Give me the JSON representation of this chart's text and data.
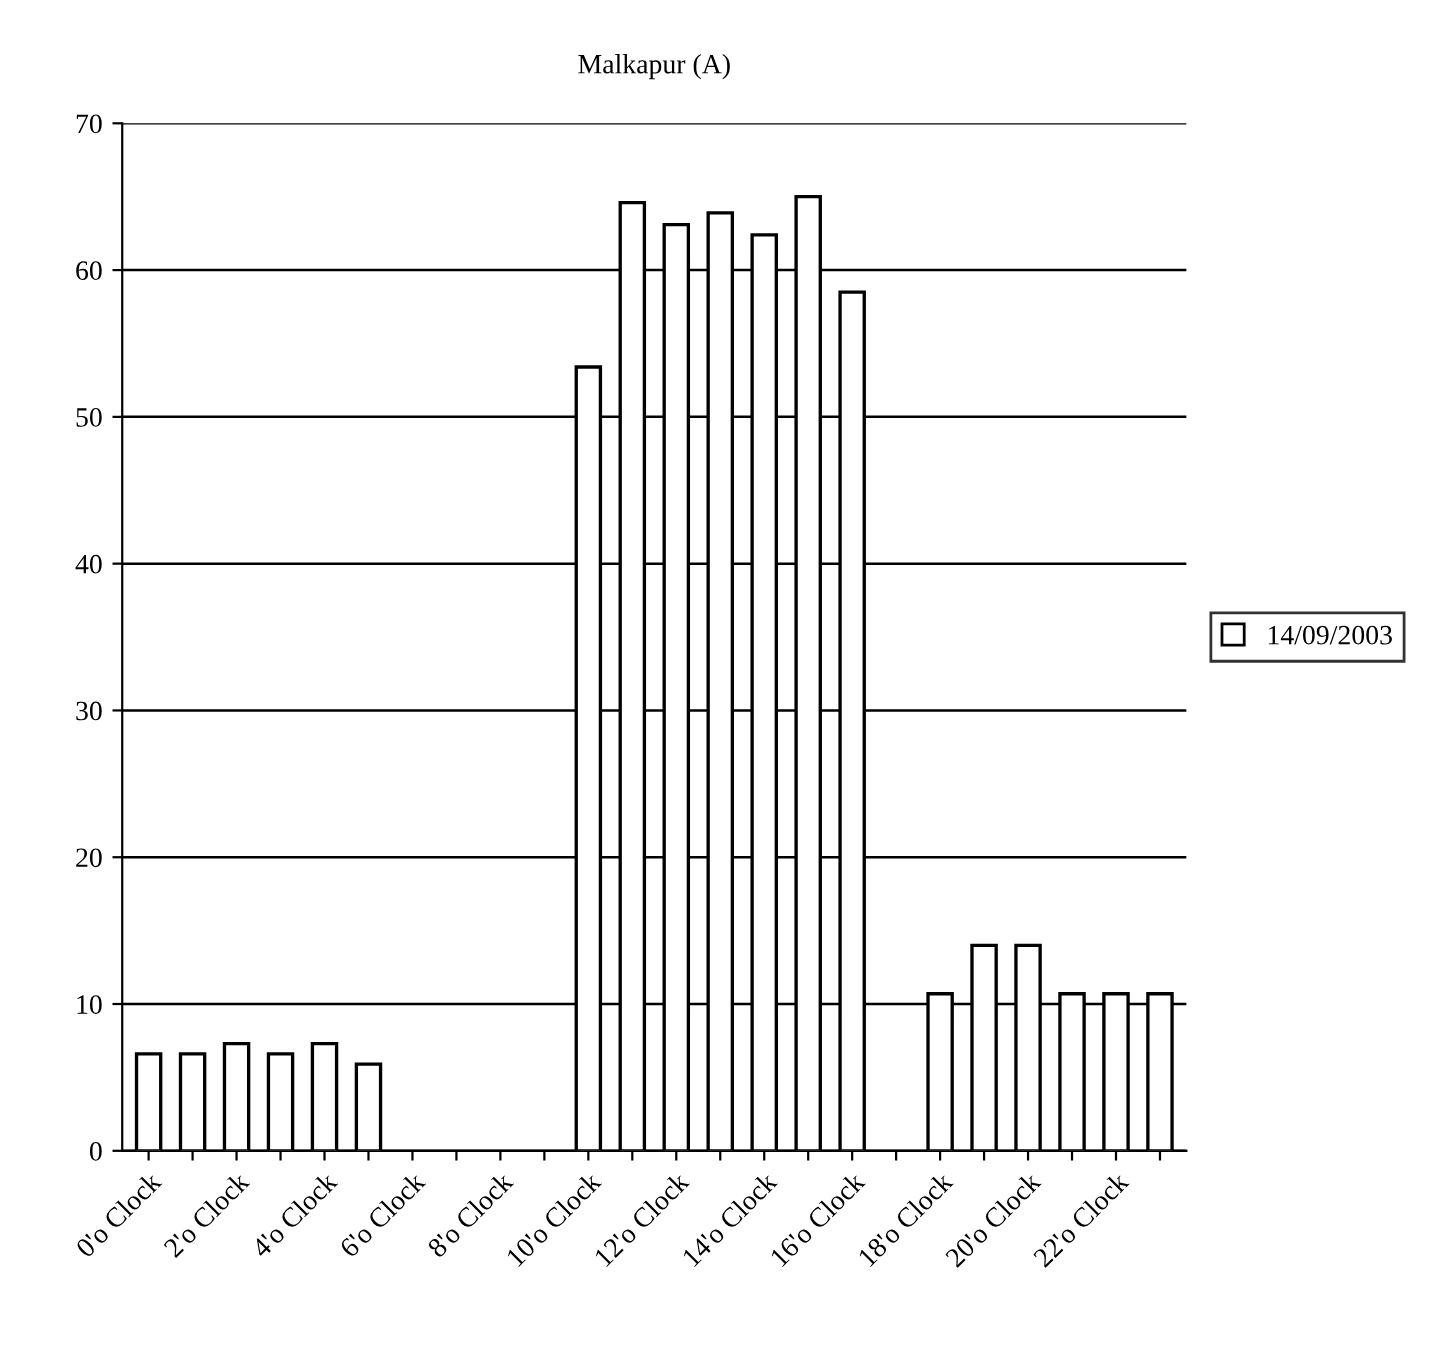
{
  "chart_data": {
    "type": "bar",
    "title": "Malkapur (A)",
    "categories": [
      "0'o Clock",
      null,
      "2'o Clock",
      null,
      "4'o Clock",
      null,
      "6'o Clock",
      null,
      "8'o Clock",
      null,
      "10'o Clock",
      null,
      "12'o Clock",
      null,
      "14'o Clock",
      null,
      "16'o Clock",
      null,
      "18'o Clock",
      null,
      "20'o Clock",
      null,
      "22'o Clock",
      null
    ],
    "series": [
      {
        "name": "14/09/2003",
        "color": "#ffffff",
        "values": [
          6.6,
          6.6,
          7.3,
          6.6,
          7.3,
          5.9,
          0,
          0,
          0,
          0,
          53.4,
          64.6,
          63.1,
          63.9,
          62.4,
          65.0,
          58.5,
          0,
          10.7,
          14.0,
          14.0,
          10.7,
          10.7,
          10.7
        ]
      }
    ],
    "ylim": [
      0,
      70
    ],
    "yticks": [
      0,
      10,
      20,
      30,
      40,
      50,
      60,
      70
    ],
    "grid": "y",
    "legend": "right"
  }
}
